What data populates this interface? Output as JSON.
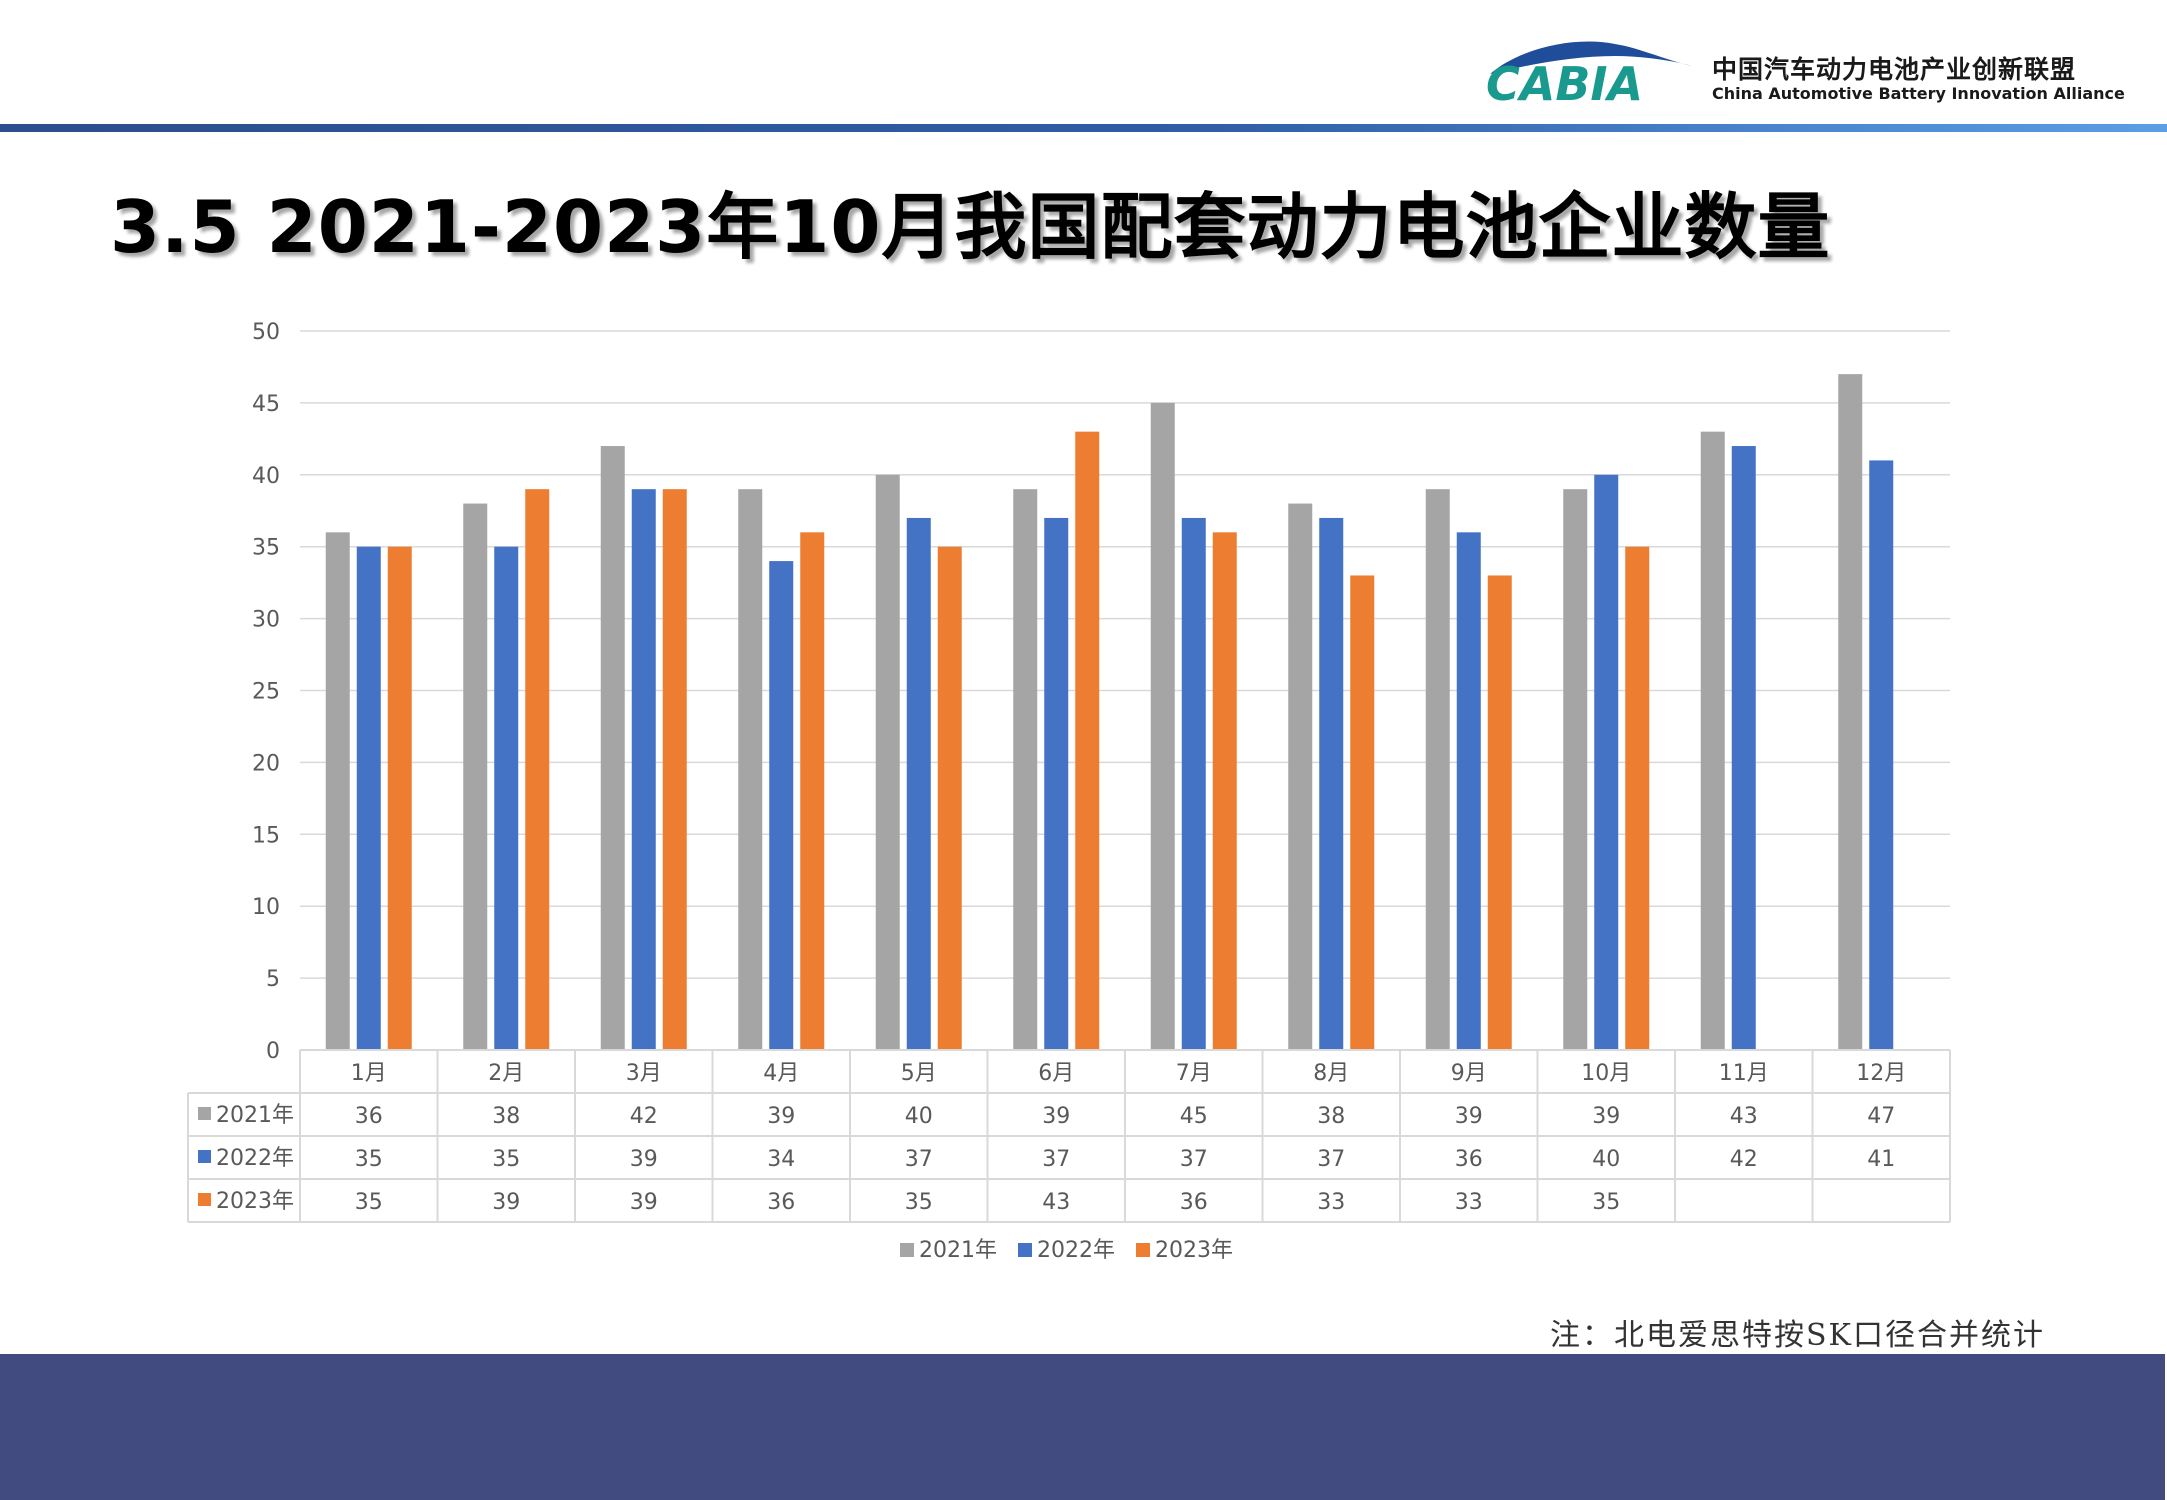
{
  "header": {
    "logo_text": "CABIA",
    "org_name_cn": "中国汽车动力电池产业创新联盟",
    "org_name_en": "China Automotive Battery Innovation Alliance"
  },
  "title": "3.5 2021-2023年10月我国配套动力电池企业数量",
  "note": "注：北电爱思特按SK口径合并统计",
  "colors": {
    "series_2021": "#a5a5a5",
    "series_2022": "#4472c4",
    "series_2023": "#ed7d31",
    "band": "#414b80",
    "top_bar": "#2f5da6"
  },
  "chart_data": {
    "type": "bar",
    "categories": [
      "1月",
      "2月",
      "3月",
      "4月",
      "5月",
      "6月",
      "7月",
      "8月",
      "9月",
      "10月",
      "11月",
      "12月"
    ],
    "series": [
      {
        "name": "2021年",
        "values": [
          36,
          38,
          42,
          39,
          40,
          39,
          45,
          38,
          39,
          39,
          43,
          47
        ]
      },
      {
        "name": "2022年",
        "values": [
          35,
          35,
          39,
          34,
          37,
          37,
          37,
          37,
          36,
          40,
          42,
          41
        ]
      },
      {
        "name": "2023年",
        "values": [
          35,
          39,
          39,
          36,
          35,
          43,
          36,
          33,
          33,
          35,
          null,
          null
        ]
      }
    ],
    "ylim": [
      0,
      50
    ],
    "yticks": [
      0,
      5,
      10,
      15,
      20,
      25,
      30,
      35,
      40,
      45,
      50
    ],
    "grid": true,
    "legend": "bottom",
    "data_table": true
  }
}
